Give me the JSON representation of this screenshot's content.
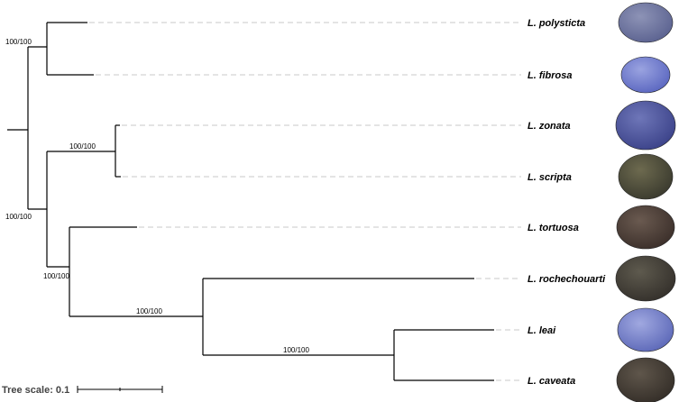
{
  "tree": {
    "taxa": [
      {
        "label": "L. polysticta",
        "shell_color": "#5b6290",
        "shell_highlight": "#8d93b6"
      },
      {
        "label": "L. fibrosa",
        "shell_color": "#5a66c0",
        "shell_highlight": "#9aa3e0"
      },
      {
        "label": "L. zonata",
        "shell_color": "#3b4289",
        "shell_highlight": "#6e76b8"
      },
      {
        "label": "L. scripta",
        "shell_color": "#3a3a2e",
        "shell_highlight": "#6d6a4f"
      },
      {
        "label": "L. tortuosa",
        "shell_color": "#3b2f2a",
        "shell_highlight": "#6a5a50"
      },
      {
        "label": "L. rochechouarti",
        "shell_color": "#34302b",
        "shell_highlight": "#5e5a4e"
      },
      {
        "label": "L. leai",
        "shell_color": "#5c68b8",
        "shell_highlight": "#a0a8e0"
      },
      {
        "label": "L. caveata",
        "shell_color": "#342e28",
        "shell_highlight": "#5f564b"
      }
    ],
    "support_values": [
      {
        "node": "polysticta-fibrosa",
        "label": "100/100"
      },
      {
        "node": "zonata-scripta",
        "label": "100/100"
      },
      {
        "node": "upper-clade",
        "label": "100/100"
      },
      {
        "node": "lower-clade",
        "label": "100/100"
      },
      {
        "node": "rochechouarti-clade",
        "label": "100/100"
      },
      {
        "node": "leai-caveata",
        "label": "100/100"
      }
    ],
    "tree_scale_label": "Tree scale: 0.1"
  }
}
